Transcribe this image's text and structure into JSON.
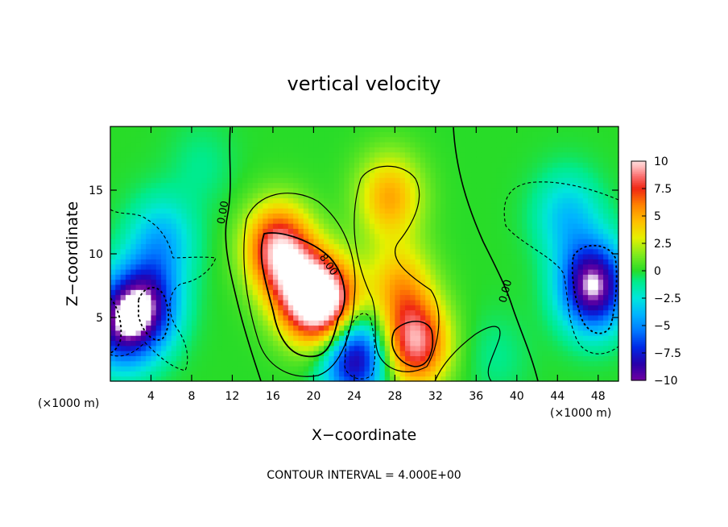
{
  "chart_data": {
    "type": "heatmap",
    "title": "vertical velocity",
    "xlabel": "X−coordinate",
    "ylabel": "Z−coordinate",
    "x_unit": "(×1000 m)",
    "x_unit_right": "(×1000 m)",
    "xlim": [
      0,
      50
    ],
    "ylim": [
      0,
      20
    ],
    "x_ticks": [
      4,
      8,
      12,
      16,
      20,
      24,
      28,
      32,
      36,
      40,
      44,
      48
    ],
    "x_tick_labels": [
      "4",
      "8",
      "12",
      "16",
      "20",
      "24",
      "28",
      "32",
      "36",
      "40",
      "44",
      "48"
    ],
    "y_ticks": [
      5,
      10,
      15
    ],
    "y_tick_labels": [
      "5",
      "10",
      "15"
    ],
    "colorbar": {
      "range": [
        -10,
        10
      ],
      "ticks": [
        10,
        7.5,
        5,
        2.5,
        0,
        -2.5,
        -5,
        -7.5,
        -10
      ],
      "tick_labels": [
        "10",
        "7.5",
        "5",
        "2.5",
        "0",
        "−2.5",
        "−5",
        "−7.5",
        "−10"
      ]
    },
    "contour_interval_text": "CONTOUR INTERVAL = 4.000E+00",
    "contour_labels": [
      "0.00",
      "8.00",
      "0.00"
    ],
    "features": [
      {
        "x": 19,
        "z": 7,
        "w": 8.0
      },
      {
        "x": 16.5,
        "z": 10.5,
        "w": 9.0
      },
      {
        "x": 21.5,
        "z": 6,
        "w": 9.5
      },
      {
        "x": 27.5,
        "z": 14.5,
        "w": 5.0
      },
      {
        "x": 28.5,
        "z": 7.5,
        "w": 4.5
      },
      {
        "x": 30,
        "z": 3,
        "w": 9.0
      },
      {
        "x": 24,
        "z": 2,
        "w": -9.5
      },
      {
        "x": 47.5,
        "z": 7.5,
        "w": -11.0
      },
      {
        "x": 3.5,
        "z": 6,
        "w": -8.0
      },
      {
        "x": 1,
        "z": 4.5,
        "w": -8.0
      },
      {
        "x": 5,
        "z": 11,
        "w": -4.0
      },
      {
        "x": 45,
        "z": 13,
        "w": -3.5
      },
      {
        "x": 9,
        "z": 17,
        "w": -1.0
      },
      {
        "x": 38,
        "z": 2,
        "w": -1.0
      }
    ]
  }
}
